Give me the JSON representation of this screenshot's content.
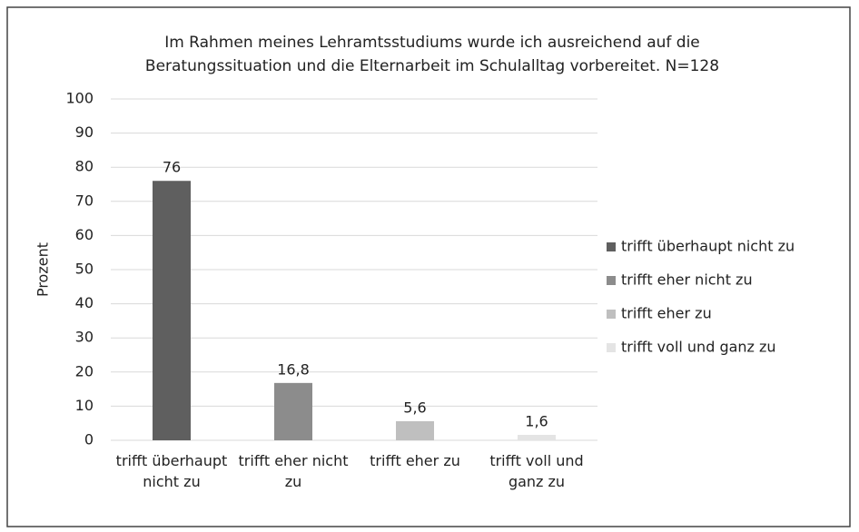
{
  "chart_data": {
    "type": "bar",
    "title": "Im Rahmen meines Lehramtsstudiums wurde ich ausreichend auf die Beratungssituation und die Elternarbeit im Schulalltag vorbereitet. N=128",
    "y_label": "Prozent",
    "categories": [
      "trifft überhaupt nicht zu",
      "trifft eher nicht zu",
      "trifft eher zu",
      "trifft voll und ganz zu"
    ],
    "values": [
      76,
      16.8,
      5.6,
      1.6
    ],
    "value_labels": [
      "76",
      "16,8",
      "5,6",
      "1,6"
    ],
    "colors": [
      "#5f5f5f",
      "#8c8c8c",
      "#bfbfbf",
      "#e4e4e4"
    ],
    "ylim": [
      0,
      100
    ],
    "yticks": [
      0,
      10,
      20,
      30,
      40,
      50,
      60,
      70,
      80,
      90,
      100
    ],
    "grid": true,
    "legend": "right"
  }
}
